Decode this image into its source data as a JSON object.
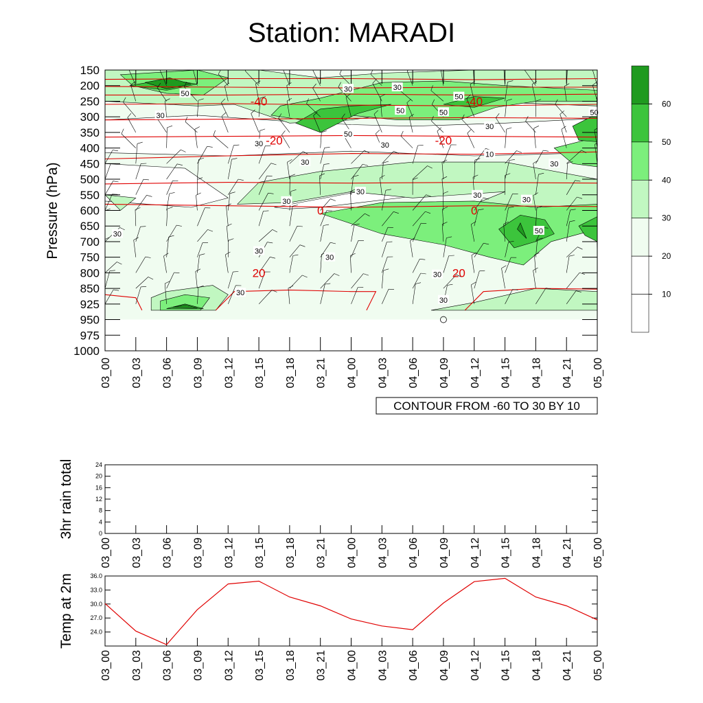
{
  "title": "Station: MARADI",
  "colors": {
    "fill_levels": [
      "#ffffff",
      "#f0fcf0",
      "#c1f7c1",
      "#7cef7c",
      "#3cc43c",
      "#1f9a1f"
    ],
    "isotherm": "#e00000",
    "barb": "#000000"
  },
  "chart_data": [
    {
      "type": "contour",
      "name": "time-pressure cross section",
      "ylabel": "Pressure (hPa)",
      "xlabel": "",
      "x_ticks": [
        "03_00",
        "03_03",
        "03_06",
        "03_09",
        "03_12",
        "03_15",
        "03_18",
        "03_21",
        "04_00",
        "04_03",
        "04_06",
        "04_09",
        "04_12",
        "04_15",
        "04_18",
        "04_21",
        "05_00"
      ],
      "y_ticks": [
        "150",
        "200",
        "250",
        "300",
        "350",
        "400",
        "450",
        "500",
        "550",
        "600",
        "650",
        "700",
        "750",
        "800",
        "850",
        "925",
        "950",
        "975",
        "1000"
      ],
      "info_label": "CONTOUR FROM -60 TO 30 BY 10",
      "colorbar": {
        "labels": [
          "10",
          "20",
          "30",
          "40",
          "50",
          "60"
        ]
      },
      "isotherm_labels": [
        {
          "text": "-40",
          "time": 5,
          "level": 250
        },
        {
          "text": "-40",
          "time": 12,
          "level": 250
        },
        {
          "text": "-20",
          "time": 5.5,
          "level": 375
        },
        {
          "text": "-20",
          "time": 11,
          "level": 375
        },
        {
          "text": "0",
          "time": 7,
          "level": 600
        },
        {
          "text": "0",
          "time": 12,
          "level": 600
        },
        {
          "text": "20",
          "time": 5,
          "level": 800
        },
        {
          "text": "20",
          "time": 11.5,
          "level": 800
        }
      ],
      "wind_labels": [
        {
          "text": "50",
          "time": 2.6,
          "level": 225
        },
        {
          "text": "30",
          "time": 7.9,
          "level": 210
        },
        {
          "text": "30",
          "time": 9.5,
          "level": 205
        },
        {
          "text": "50",
          "time": 11.5,
          "level": 235
        },
        {
          "text": "50",
          "time": 9.6,
          "level": 280
        },
        {
          "text": "50",
          "time": 11,
          "level": 285
        },
        {
          "text": "30",
          "time": 12.5,
          "level": 330
        },
        {
          "text": "50",
          "time": 15.9,
          "level": 285
        },
        {
          "text": "30",
          "time": 1.8,
          "level": 295
        },
        {
          "text": "50",
          "time": 7.9,
          "level": 355
        },
        {
          "text": "30",
          "time": 5,
          "level": 385
        },
        {
          "text": "30",
          "time": 9.1,
          "level": 390
        },
        {
          "text": "10",
          "time": 12.5,
          "level": 420
        },
        {
          "text": "30",
          "time": 6.5,
          "level": 445
        },
        {
          "text": "30",
          "time": 14.6,
          "level": 450
        },
        {
          "text": "30",
          "time": 8.3,
          "level": 540
        },
        {
          "text": "30",
          "time": 12.1,
          "level": 550
        },
        {
          "text": "30",
          "time": 13.7,
          "level": 565
        },
        {
          "text": "30",
          "time": 5.9,
          "level": 570
        },
        {
          "text": "50",
          "time": 14.1,
          "level": 665
        },
        {
          "text": "30",
          "time": 0.4,
          "level": 675
        },
        {
          "text": "30",
          "time": 5,
          "level": 730
        },
        {
          "text": "30",
          "time": 7.3,
          "level": 750
        },
        {
          "text": "30",
          "time": 10.8,
          "level": 805
        },
        {
          "text": "30",
          "time": 4.4,
          "level": 870
        },
        {
          "text": "30",
          "time": 11,
          "level": 905
        }
      ]
    },
    {
      "type": "line",
      "name": "3hr rain total",
      "ylabel": "3hr rain total",
      "x_ticks": [
        "03_00",
        "03_03",
        "03_06",
        "03_09",
        "03_12",
        "03_15",
        "03_18",
        "03_21",
        "04_00",
        "04_03",
        "04_06",
        "04_09",
        "04_12",
        "04_15",
        "04_18",
        "04_21",
        "05_00"
      ],
      "y_ticks": [
        "0",
        "4",
        "8",
        "12",
        "16",
        "20",
        "24"
      ],
      "ylim": [
        0,
        24
      ],
      "values": []
    },
    {
      "type": "line",
      "name": "Temp at 2m",
      "ylabel": "Temp at 2m",
      "x_ticks": [
        "03_00",
        "03_03",
        "03_06",
        "03_09",
        "03_12",
        "03_15",
        "03_18",
        "03_21",
        "04_00",
        "04_03",
        "04_06",
        "04_09",
        "04_12",
        "04_15",
        "04_18",
        "04_21",
        "05_00"
      ],
      "y_ticks": [
        "24.0",
        "27.0",
        "30.0",
        "33.0",
        "36.0"
      ],
      "ylim": [
        21.0,
        36.0
      ],
      "values": [
        30.1,
        24.2,
        21.3,
        28.8,
        34.3,
        34.9,
        31.5,
        29.6,
        26.8,
        25.3,
        24.5,
        30.2,
        34.8,
        35.5,
        31.5,
        29.6,
        26.6
      ],
      "line_color": "#e00000"
    }
  ]
}
